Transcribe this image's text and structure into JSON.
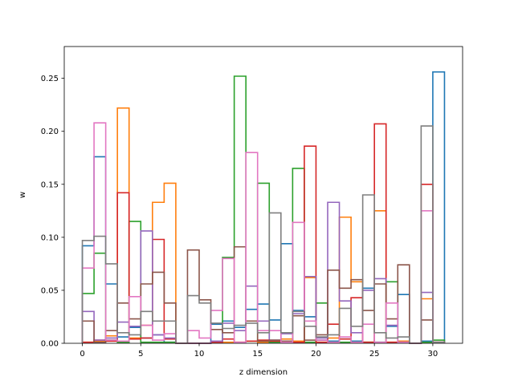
{
  "chart_data": {
    "type": "step",
    "title": "",
    "xlabel": "z dimension",
    "ylabel": "w",
    "xlim": [
      -1.55,
      32.55
    ],
    "ylim": [
      0,
      0.28
    ],
    "xticks": [
      0,
      5,
      10,
      15,
      20,
      25,
      30
    ],
    "yticks": [
      0.0,
      0.05,
      0.1,
      0.15,
      0.2,
      0.25
    ],
    "x_bin_start": 0,
    "bin_width": 1,
    "grid": false,
    "legend": false,
    "series": [
      {
        "color": "#1f77b4",
        "values": [
          0.092,
          0.176,
          0.056,
          0.006,
          0.015,
          0.005,
          0.008,
          0.001,
          0,
          0,
          0,
          0.018,
          0.021,
          0.015,
          0.032,
          0.037,
          0.022,
          0.094,
          0.031,
          0.025,
          0.003,
          0.002,
          0.004,
          0.002,
          0.052,
          0.001,
          0.016,
          0.046,
          0,
          0.002,
          0.256
        ]
      },
      {
        "color": "#ff7f0e",
        "values": [
          0.001,
          0.002,
          0.007,
          0.222,
          0.005,
          0.017,
          0.133,
          0.151,
          0,
          0,
          0,
          0.001,
          0.001,
          0.001,
          0.002,
          0.001,
          0.001,
          0.004,
          0.002,
          0.062,
          0.001,
          0.005,
          0.119,
          0.058,
          0.001,
          0.125,
          0.001,
          0.002,
          0,
          0.042,
          0.001
        ]
      },
      {
        "color": "#2ca02c",
        "values": [
          0.047,
          0.085,
          0.003,
          0.001,
          0.115,
          0.001,
          0.001,
          0.001,
          0,
          0,
          0,
          0.001,
          0.081,
          0.252,
          0.002,
          0.151,
          0.001,
          0.002,
          0.165,
          0.001,
          0.038,
          0.001,
          0.001,
          0.001,
          0.001,
          0.001,
          0.058,
          0.001,
          0,
          0.001,
          0.003
        ]
      },
      {
        "color": "#d62728",
        "values": [
          0.001,
          0.003,
          0.002,
          0.142,
          0.004,
          0.005,
          0.098,
          0.004,
          0,
          0,
          0,
          0.001,
          0.004,
          0.001,
          0.002,
          0.003,
          0.002,
          0.001,
          0.001,
          0.186,
          0.001,
          0.018,
          0.004,
          0.043,
          0.001,
          0.207,
          0.001,
          0.001,
          0,
          0.15,
          0.001
        ]
      },
      {
        "color": "#9467bd",
        "values": [
          0.03,
          0.003,
          0.005,
          0.02,
          0.016,
          0.106,
          0.008,
          0.005,
          0,
          0,
          0,
          0.002,
          0.019,
          0.012,
          0.054,
          0.021,
          0.003,
          0.009,
          0.028,
          0.063,
          0.005,
          0.133,
          0.04,
          0.01,
          0.05,
          0.061,
          0.017,
          0.001,
          0,
          0.048,
          0.001
        ]
      },
      {
        "color": "#8c564b",
        "values": [
          0.021,
          0.001,
          0.012,
          0.038,
          0.023,
          0.056,
          0.067,
          0.038,
          0,
          0.088,
          0.041,
          0.013,
          0.01,
          0.091,
          0.021,
          0.002,
          0.003,
          0.002,
          0.026,
          0.003,
          0.008,
          0.069,
          0.052,
          0.06,
          0.031,
          0.056,
          0.023,
          0.074,
          0,
          0.022,
          0.001
        ]
      },
      {
        "color": "#e377c2",
        "values": [
          0.071,
          0.208,
          0.003,
          0.002,
          0.044,
          0.017,
          0.003,
          0.009,
          0,
          0.012,
          0.005,
          0.031,
          0.08,
          0.001,
          0.18,
          0.012,
          0.012,
          0.001,
          0.114,
          0.021,
          0.003,
          0.001,
          0.006,
          0.001,
          0.018,
          0.001,
          0.038,
          0.001,
          0,
          0.125,
          0.001
        ]
      },
      {
        "color": "#7f7f7f",
        "values": [
          0.097,
          0.101,
          0.075,
          0.01,
          0.008,
          0.03,
          0.021,
          0.021,
          0,
          0.045,
          0.038,
          0.019,
          0.014,
          0.017,
          0.019,
          0.01,
          0.123,
          0.01,
          0.03,
          0.016,
          0.006,
          0.008,
          0.033,
          0.016,
          0.14,
          0.01,
          0.005,
          0.006,
          0,
          0.205,
          0.001
        ]
      }
    ]
  }
}
